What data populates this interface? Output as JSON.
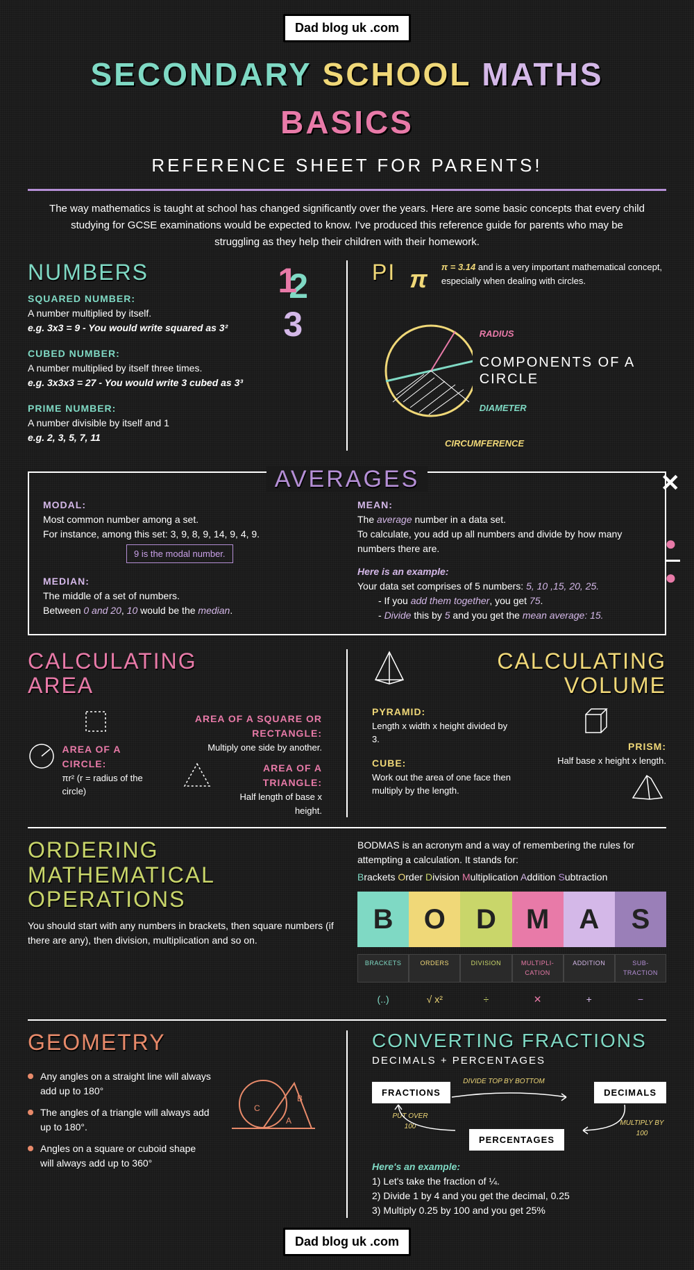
{
  "colors": {
    "mint": "#7fd9c4",
    "yellow": "#f0d878",
    "pink": "#e87aa8",
    "purple": "#b58fd6",
    "pale_purple": "#d4b8e8",
    "salmon": "#e88a6a",
    "green_yellow": "#c9d66a"
  },
  "header": {
    "badge": "Dad blog uk .com",
    "title_w1": "SECONDARY",
    "title_w2": "SCHOOL",
    "title_w3": "MATHS",
    "title_w4": "BASICS",
    "subtitle": "REFERENCE SHEET FOR PARENTS!",
    "intro": "The way mathematics is taught at school has changed significantly over the years. Here are some basic concepts that every child studying for GCSE examinations would be expected to know. I've produced this reference guide for parents who may be struggling as they help their children with their homework."
  },
  "numbers": {
    "title": "NUMBERS",
    "squared_h": "SQUARED NUMBER:",
    "squared_t": "A number multiplied by itself.",
    "squared_eg": "e.g. 3x3 = 9  -  You would write squared as 3²",
    "cubed_h": "CUBED NUMBER:",
    "cubed_t": "A number multiplied by itself three times.",
    "cubed_eg": "e.g. 3x3x3 = 27 -  You would write 3 cubed as 3³",
    "prime_h": "PRIME NUMBER:",
    "prime_t": "A number divisible by itself and 1",
    "prime_eg": "e.g. 2, 3, 5, 7, 11"
  },
  "pi": {
    "title": "PI",
    "symbol": "π",
    "val": "π = 3.14",
    "desc": " and is a very important mathematical concept, especially when dealing with circles.",
    "radius": "RADIUS",
    "components": "COMPONENTS OF A CIRCLE",
    "diameter": "DIAMETER",
    "circumference": "CIRCUMFERENCE"
  },
  "averages": {
    "title": "AVERAGES",
    "modal_h": "MODAL:",
    "modal_t1": "Most common number among a set.",
    "modal_t2": "For instance, among this set: 3, 9, 8, 9, 14, 9, 4, 9.",
    "modal_box": "9 is the modal number.",
    "median_h": "MEDIAN:",
    "median_t1": "The middle of a set of numbers.",
    "median_t2_a": "Between ",
    "median_t2_b": "0 and 20",
    "median_t2_c": ", ",
    "median_t2_d": "10",
    "median_t2_e": " would be the ",
    "median_t2_f": "median",
    "mean_h": "MEAN:",
    "mean_t1a": "The ",
    "mean_t1b": "average",
    "mean_t1c": " number in a data set.",
    "mean_t2": "To calculate, you add up all numbers and divide by how many numbers there are.",
    "mean_ex_h": "Here is an example:",
    "mean_ex1a": "Your data set comprises of 5 numbers: ",
    "mean_ex1b": "5, 10 ,15, 20, 25.",
    "mean_b1a": "- If you ",
    "mean_b1b": "add them together",
    "mean_b1c": ", you get ",
    "mean_b1d": "75",
    "mean_b2a": "- ",
    "mean_b2b": "Divide",
    "mean_b2c": " this by ",
    "mean_b2d": "5",
    "mean_b2e": " and you get the ",
    "mean_b2f": "mean average: 15."
  },
  "area": {
    "title1": "CALCULATING",
    "title2": "AREA",
    "circle_h": "AREA OF A CIRCLE:",
    "circle_t": "πr² (r = radius of the circle)",
    "square_h": "AREA OF A SQUARE OR RECTANGLE:",
    "square_t": "Multiply one side by another.",
    "tri_h": "AREA OF A TRIANGLE:",
    "tri_t": "Half length of base x height."
  },
  "volume": {
    "title1": "CALCULATING",
    "title2": "VOLUME",
    "pyr_h": "PYRAMID:",
    "pyr_t": "Length x width x height divided by 3.",
    "cube_h": "CUBE:",
    "cube_t": "Work out the area of one face then multiply by the length.",
    "prism_h": "PRISM:",
    "prism_t": "Half base x height x length."
  },
  "ordering": {
    "title1": "ORDERING",
    "title2": "MATHEMATICAL",
    "title3": "OPERATIONS",
    "text": "You should start with any numbers in brackets, then square numbers (if there are any), then division, multiplication and so on.",
    "desc": "BODMAS is an acronym and a way of remembering the rules for attempting a calculation. It stands for:",
    "expand_b": "B",
    "expand_b2": "rackets ",
    "expand_o": "O",
    "expand_o2": "rder ",
    "expand_d": "D",
    "expand_d2": "ivision ",
    "expand_m": "M",
    "expand_m2": "ultiplication ",
    "expand_a": "A",
    "expand_a2": "ddition ",
    "expand_s": "S",
    "expand_s2": "ubtraction",
    "bodmas": [
      "B",
      "O",
      "D",
      "M",
      "A",
      "S"
    ],
    "bodmas_colors": [
      "#7fd9c4",
      "#f0d878",
      "#c9d66a",
      "#e87aa8",
      "#d4b8e8",
      "#9a7fb8"
    ],
    "labels": [
      "BRACKETS",
      "ORDERS",
      "DIVISION",
      "MULTIPLI-CATION",
      "ADDITION",
      "SUB-TRACTION"
    ],
    "label_colors": [
      "#7fd9c4",
      "#f0d878",
      "#c9d66a",
      "#e87aa8",
      "#d4b8e8",
      "#b58fd6"
    ],
    "symbols": [
      "(..)",
      "√  x²",
      "÷",
      "✕",
      "+",
      "−"
    ]
  },
  "geometry": {
    "title": "GEOMETRY",
    "b1": "Any angles on a straight line will always add up to 180°",
    "b2": "The angles of a triangle will always add up to 180°.",
    "b3": "Angles on a square or cuboid shape will always add up to 360°"
  },
  "fractions": {
    "title": "CONVERTING FRACTIONS",
    "sub": "DECIMALS + PERCENTAGES",
    "box1": "FRACTIONS",
    "box2": "DECIMALS",
    "box3": "PERCENTAGES",
    "arr1": "DIVIDE TOP BY BOTTOM",
    "arr2": "MULTIPLY BY 100",
    "arr3": "PUT OVER 100",
    "ex_h": "Here's an example:",
    "ex1": "1) Let's take the fraction of ¼.",
    "ex2": "2) Divide 1 by 4 and you get the decimal, 0.25",
    "ex3": "3) Multiply 0.25 by 100 and you get 25%"
  },
  "footer": {
    "badge": "Dad blog uk .com"
  }
}
